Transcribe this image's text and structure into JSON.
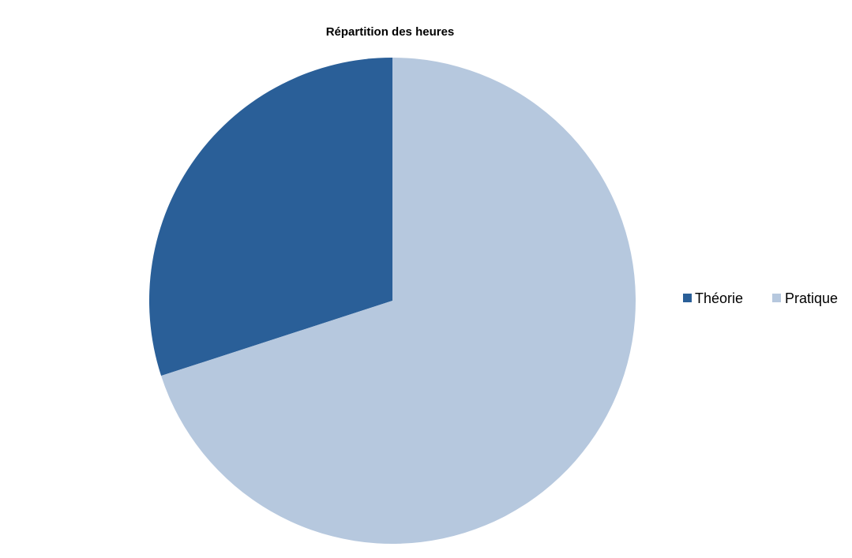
{
  "chart_data": {
    "type": "pie",
    "title": "Répartition des heures",
    "categories": [
      "Théorie",
      "Pratique"
    ],
    "values": [
      30,
      70
    ],
    "colors": [
      "#2a5f98",
      "#b6c8de"
    ],
    "start_angle_deg": 0,
    "direction": "counterclockwise",
    "legend_position": "right"
  }
}
